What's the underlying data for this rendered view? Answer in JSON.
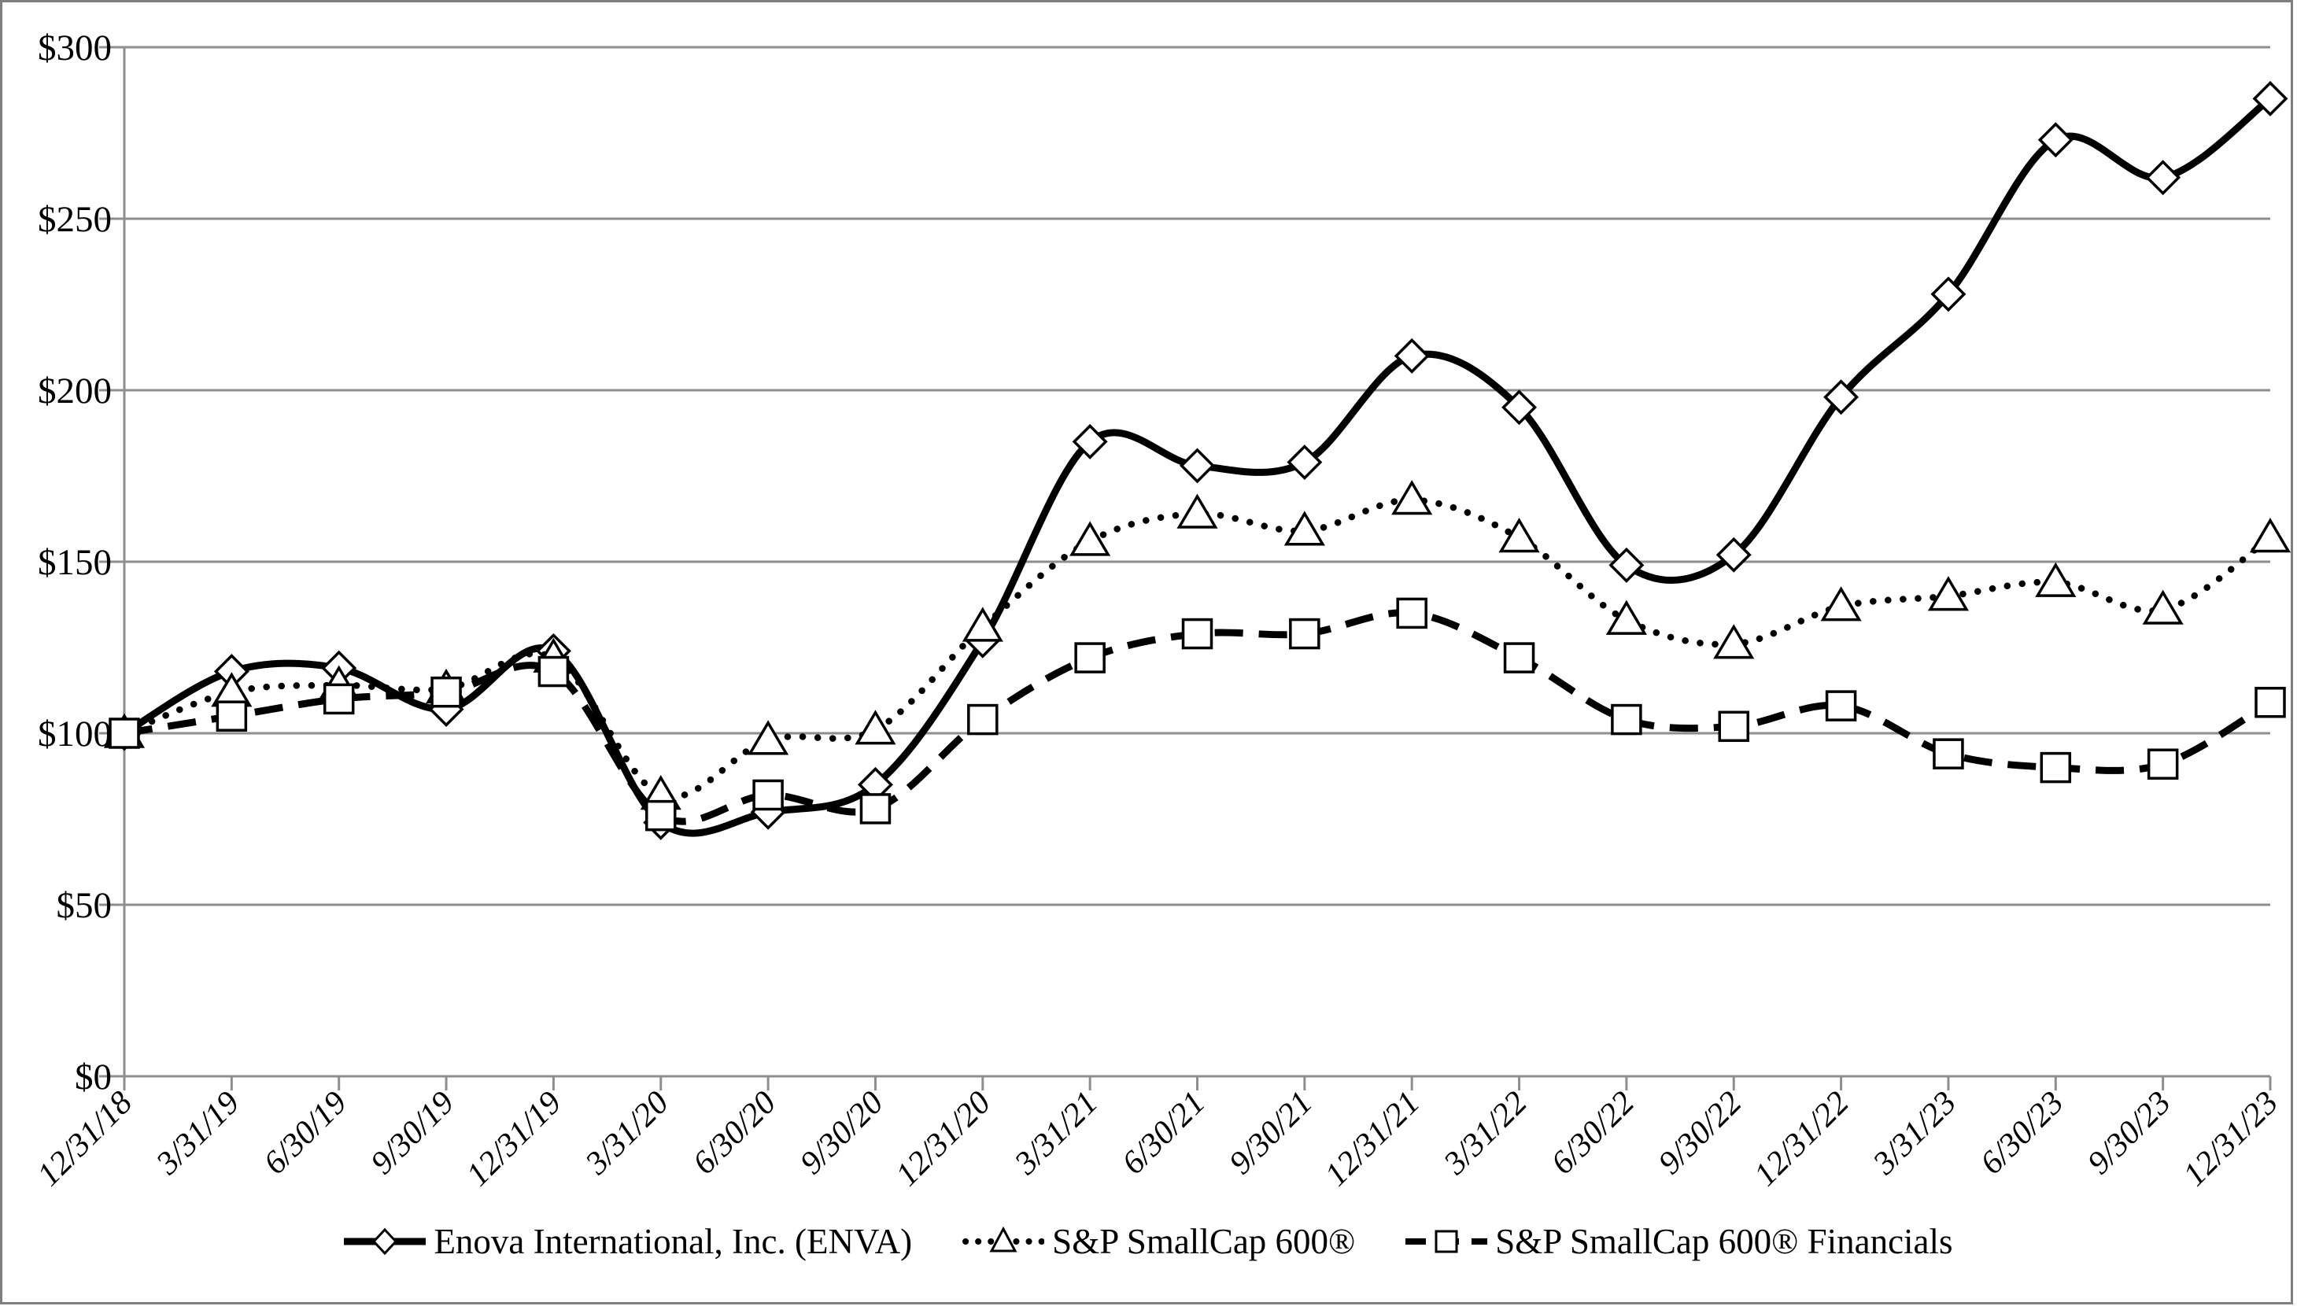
{
  "chart_data": {
    "type": "line",
    "title": "",
    "categories": [
      "12/31/18",
      "3/31/19",
      "6/30/19",
      "9/30/19",
      "12/31/19",
      "3/31/20",
      "6/30/20",
      "9/30/20",
      "12/31/20",
      "3/31/21",
      "6/30/21",
      "9/30/21",
      "12/31/21",
      "3/31/22",
      "6/30/22",
      "9/30/22",
      "12/31/22",
      "3/31/23",
      "6/30/23",
      "9/30/23",
      "12/31/23"
    ],
    "series": [
      {
        "name": "Enova International, Inc. (ENVA)",
        "line_style": "solid",
        "marker": "diamond",
        "color": "#000000",
        "values": [
          100,
          118,
          119,
          107,
          124,
          74,
          77,
          85,
          127,
          185,
          178,
          179,
          210,
          195,
          149,
          152,
          198,
          228,
          273,
          262,
          285
        ]
      },
      {
        "name": "S&P SmallCap 600®",
        "line_style": "dotted",
        "marker": "triangle",
        "color": "#000000",
        "values": [
          100,
          112,
          114,
          113,
          122,
          82,
          98,
          101,
          131,
          156,
          164,
          159,
          168,
          157,
          133,
          126,
          137,
          140,
          144,
          136,
          157
        ]
      },
      {
        "name": "S&P SmallCap 600® Financials",
        "line_style": "dashed",
        "marker": "square",
        "color": "#000000",
        "values": [
          100,
          105,
          110,
          112,
          118,
          76,
          82,
          78,
          104,
          122,
          129,
          129,
          135,
          122,
          104,
          102,
          108,
          94,
          90,
          91,
          109
        ]
      }
    ],
    "y_axis": {
      "min": 0,
      "max": 300,
      "step": 50,
      "tick_prefix": "$",
      "tick_labels": [
        "$0",
        "$50",
        "$100",
        "$150",
        "$200",
        "$250",
        "$300"
      ]
    },
    "x_axis": {
      "label_rotation_deg": -45,
      "label_style": "italic"
    },
    "grid": true,
    "legend_position": "bottom-center",
    "colors": {
      "series_stroke": "#000000",
      "marker_fill": "#ffffff",
      "gridline": "#8e8e8e",
      "axis": "#8e8e8e",
      "frame_border": "#7f7f7f",
      "text": "#000000",
      "background": "#ffffff"
    }
  }
}
